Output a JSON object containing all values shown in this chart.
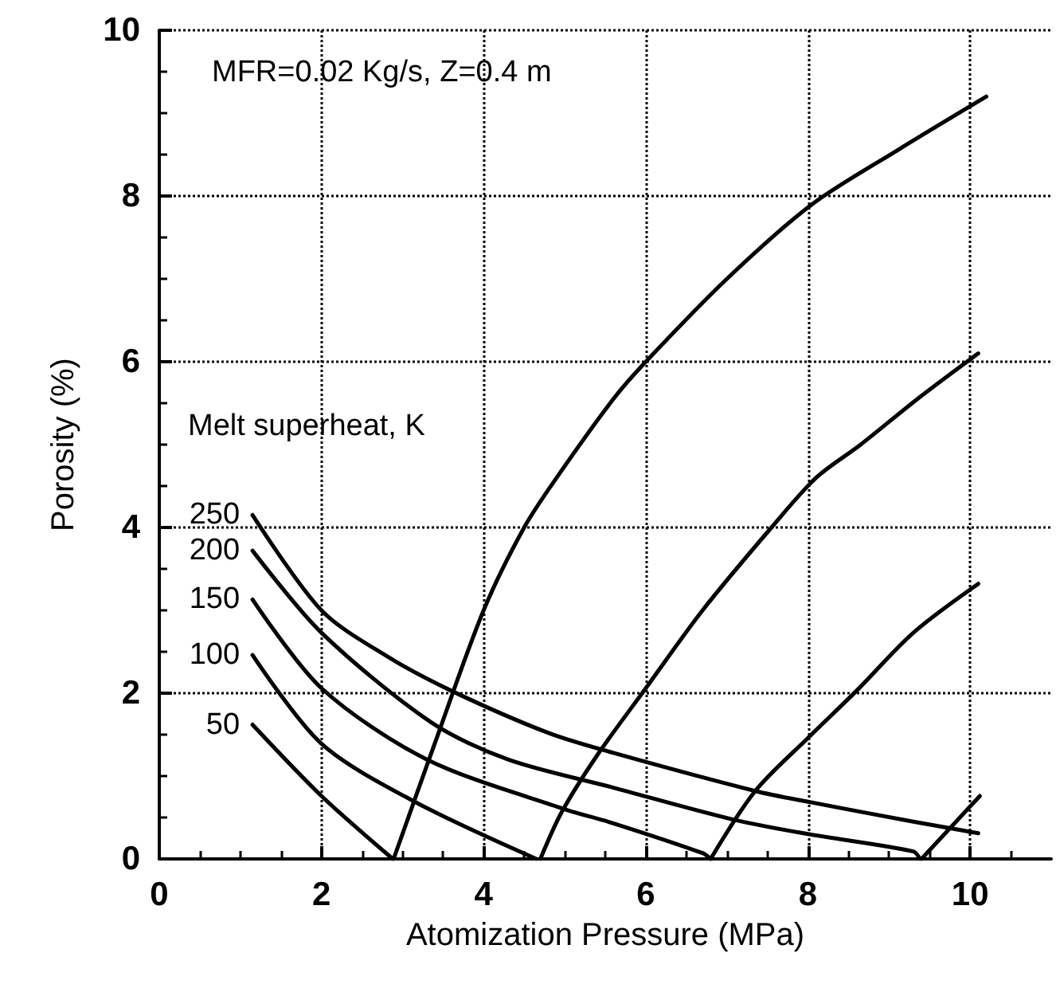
{
  "chart_data": {
    "type": "line",
    "xlabel": "Atomization Pressure (MPa)",
    "ylabel": "Porosity (%)",
    "legend_title": "Melt superheat, K",
    "annotations": [
      "MFR=0.02 Kg/s, Z=0.4 m"
    ],
    "xlim": [
      0,
      11
    ],
    "xticks": [
      0,
      2,
      4,
      6,
      8,
      10
    ],
    "ylim": [
      0,
      10
    ],
    "yticks": [
      0,
      2,
      4,
      6,
      8,
      10
    ],
    "grid": true,
    "legend": false,
    "marker": "none",
    "line_style": "solid",
    "series": [
      {
        "name": "250",
        "color": "#000000",
        "x": [
          1.15,
          2.0,
          2.8,
          3.6,
          4.8,
          5.6,
          7.35,
          8.0,
          9.3,
          10.1
        ],
        "values": [
          4.15,
          3.0,
          2.45,
          2.03,
          1.52,
          1.28,
          0.82,
          0.69,
          0.45,
          0.31
        ]
      },
      {
        "name": "200",
        "color": "#000000",
        "x": [
          1.15,
          2.0,
          3.35,
          4.3,
          5.6,
          7.1,
          8.0,
          9.3,
          9.38
        ],
        "values": [
          3.72,
          2.73,
          1.65,
          1.2,
          0.86,
          0.47,
          0.3,
          0.09,
          0.0
        ]
      },
      {
        "name": "150",
        "color": "#000000",
        "x": [
          1.15,
          2.0,
          3.3,
          5.0,
          5.6,
          6.7,
          6.8
        ],
        "values": [
          3.13,
          2.06,
          1.2,
          0.6,
          0.43,
          0.07,
          0.0
        ]
      },
      {
        "name": "100",
        "color": "#000000",
        "x": [
          1.15,
          2.0,
          3.15,
          4.65
        ],
        "values": [
          2.46,
          1.39,
          0.69,
          0.0
        ]
      },
      {
        "name": "50",
        "color": "#000000",
        "x": [
          1.15,
          2.0,
          2.88
        ],
        "values": [
          1.62,
          0.76,
          0.0
        ]
      },
      {
        "color": "#000000",
        "x": [
          2.89,
          3.4,
          4.0,
          4.5,
          4.9,
          5.6,
          6.0,
          7.0,
          8.05,
          9.1,
          10.2
        ],
        "values": [
          0.0,
          1.4,
          3.0,
          4.0,
          4.6,
          5.55,
          6.0,
          7.0,
          7.9,
          8.55,
          9.2
        ]
      },
      {
        "color": "#000000",
        "x": [
          4.7,
          4.96,
          5.4,
          6.0,
          6.7,
          7.55,
          8.1,
          8.65,
          9.35,
          10.1
        ],
        "values": [
          0.0,
          0.56,
          1.25,
          2.06,
          3.0,
          4.0,
          4.6,
          5.0,
          5.55,
          6.1
        ]
      },
      {
        "color": "#000000",
        "x": [
          6.8,
          7.35,
          8.0,
          8.6,
          9.3,
          10.1
        ],
        "values": [
          0.0,
          0.82,
          1.46,
          2.03,
          2.73,
          3.32
        ]
      },
      {
        "color": "#000000",
        "x": [
          9.4,
          10.12
        ],
        "values": [
          0.0,
          0.76
        ]
      }
    ]
  }
}
